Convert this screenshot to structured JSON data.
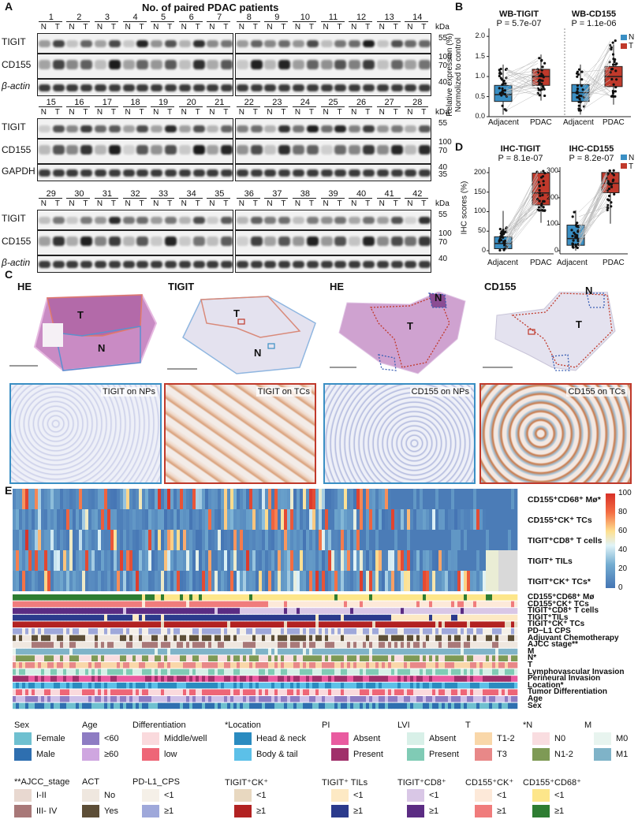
{
  "panelA": {
    "letter": "A",
    "title": "No. of paired PDAC patients",
    "lane_labels_nt": [
      "N",
      "T"
    ],
    "kda": "kDa",
    "row1_numbers": [
      "1",
      "2",
      "3",
      "4",
      "5",
      "6",
      "7",
      "8",
      "9",
      "10",
      "11",
      "12",
      "13",
      "14"
    ],
    "row2_numbers": [
      "15",
      "16",
      "17",
      "18",
      "19",
      "20",
      "21",
      "22",
      "23",
      "24",
      "25",
      "26",
      "27",
      "28"
    ],
    "row3_numbers": [
      "29",
      "30",
      "31",
      "32",
      "33",
      "34",
      "35",
      "36",
      "37",
      "38",
      "39",
      "40",
      "41",
      "42"
    ],
    "row1_proteins": [
      "TIGIT",
      "CD155",
      "β-actin"
    ],
    "row2_proteins": [
      "TIGIT",
      "CD155",
      "GAPDH"
    ],
    "row3_proteins": [
      "TIGIT",
      "CD155",
      "β-actin"
    ],
    "row1_mw": [
      "55",
      "100",
      "70",
      "40"
    ],
    "row2_mw": [
      "55",
      "100",
      "70",
      "40",
      "35"
    ],
    "row3_mw": [
      "55",
      "100",
      "70",
      "40"
    ]
  },
  "panelB": {
    "letter": "B",
    "ylabel1": "Relative expression (%)",
    "ylabel2": "Normolized to control",
    "plot1": {
      "title": "WB-TIGIT",
      "p": "P = 5.7e-07",
      "xlabels": [
        "Adjacent",
        "PDAC"
      ]
    },
    "plot2": {
      "title": "WB-CD155",
      "p": "P = 1.1e-06",
      "xlabels": [
        "Adjacent",
        "PDAC"
      ]
    },
    "yticks": [
      "0.0",
      "0.5",
      "1.0",
      "1.5",
      "2.0"
    ],
    "legend": [
      "N",
      "T"
    ]
  },
  "panelD": {
    "letter": "D",
    "ylabel": "IHC scores (%)",
    "plot1": {
      "title": "IHC-TIGIT",
      "p": "P = 8.1e-07",
      "yticks": [
        "0",
        "50",
        "100",
        "150",
        "200"
      ],
      "xlabels": [
        "Adjacent",
        "PDAC"
      ]
    },
    "plot2": {
      "title": "IHC-CD155",
      "p": "P = 8.2e-07",
      "yticks": [
        "0",
        "100",
        "200",
        "300"
      ],
      "xlabels": [
        "Adjacent",
        "PDAC"
      ]
    },
    "legend": [
      "N",
      "T"
    ]
  },
  "panelC": {
    "letter": "C",
    "titles": [
      "HE",
      "TIGIT",
      "HE",
      "CD155"
    ],
    "T": "T",
    "N": "N",
    "micro": [
      "TIGIT on NPs",
      "TIGIT on TCs",
      "CD155 on NPs",
      "CD155 on TCs"
    ]
  },
  "panelE": {
    "letter": "E",
    "heatmap_rows": [
      "CD155⁺CD68⁺ Mø*",
      "CD155⁺CK⁺ TCs",
      "TIGIT⁺CD8⁺ T cells",
      "TIGIT⁺ TILs",
      "TIGIT⁺CK⁺ TCs*"
    ],
    "colorbar": [
      "100",
      "80",
      "60",
      "40",
      "20",
      "0"
    ],
    "annotation_rows": [
      "CD155⁺CD68⁺ Mø",
      "CD155⁺CK⁺ TCs",
      "TIGIT⁺CD8⁺ T cells",
      "TIGIT⁺TILs",
      "TIGIT⁺CK⁺ TCs",
      "PD−L1 CPS",
      "Adjuvant Chemotherapy",
      "AJCC stage**",
      "M",
      "N*",
      "T",
      "Lymphovascular Invasion",
      "Perineural Invasion",
      "Location*",
      "Tumor Differentiation",
      "Age",
      "Sex"
    ],
    "legend": {
      "sex": {
        "title": "Sex",
        "items": [
          "Female",
          "Male"
        ]
      },
      "age": {
        "title": "Age",
        "items": [
          "<60",
          "≥60"
        ]
      },
      "diff": {
        "title": "Differentiation",
        "items": [
          "Middle/well",
          "low"
        ]
      },
      "loc": {
        "title": "*Location",
        "items": [
          "Head & neck",
          "Body & tail"
        ]
      },
      "pi": {
        "title": "PI",
        "items": [
          "Absent",
          "Present"
        ]
      },
      "lvi": {
        "title": "LVI",
        "items": [
          "Absent",
          "Present"
        ]
      },
      "t": {
        "title": "T",
        "items": [
          "T1-2",
          "T3"
        ]
      },
      "n": {
        "title": "*N",
        "items": [
          "N0",
          "N1-2"
        ]
      },
      "m": {
        "title": "M",
        "items": [
          "M0",
          "M1"
        ]
      },
      "ajcc": {
        "title": "**AJCC_stage",
        "items": [
          "I-II",
          "III- IV"
        ]
      },
      "act": {
        "title": "ACT",
        "items": [
          "No",
          "Yes"
        ]
      },
      "pdl1": {
        "title": "PD-L1_CPS",
        "items": [
          "<1",
          "≥1"
        ]
      },
      "tck": {
        "title": "TIGIT⁺CK⁺",
        "items": [
          "<1",
          "≥1"
        ]
      },
      "ttil": {
        "title": "TIGIT⁺ TILs",
        "items": [
          "<1",
          "≥1"
        ]
      },
      "tcd8": {
        "title": "TIGIT⁺CD8⁺",
        "items": [
          "<1",
          "≥1"
        ]
      },
      "cck": {
        "title": "CD155⁺CK⁺",
        "items": [
          "<1",
          "≥1"
        ]
      },
      "ccd68": {
        "title": "CD155⁺CD68⁺",
        "items": [
          "<1",
          "≥1"
        ]
      }
    }
  },
  "colors": {
    "N": "#3a8fc4",
    "T": "#c0392b",
    "hm_low": "#4575b4",
    "hm_high": "#d73027"
  }
}
